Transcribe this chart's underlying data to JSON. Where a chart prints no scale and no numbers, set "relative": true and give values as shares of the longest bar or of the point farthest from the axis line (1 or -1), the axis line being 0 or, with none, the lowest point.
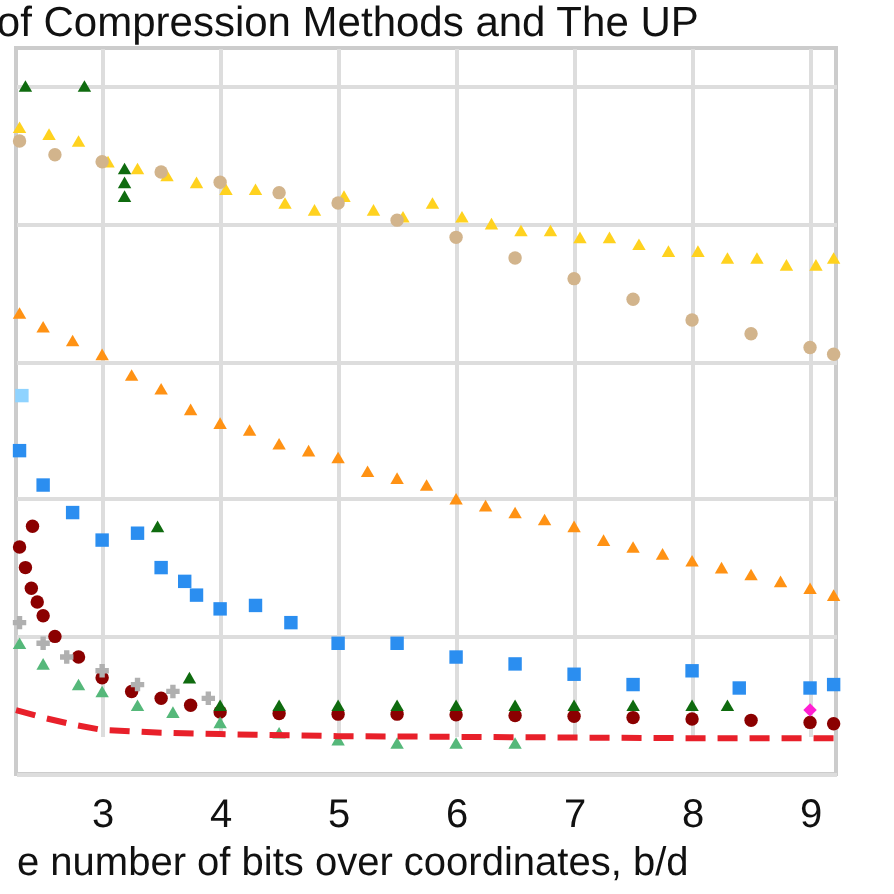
{
  "chart_data": {
    "type": "scatter",
    "title": "of Compression Methods and The UP",
    "xlabel": "e number of bits over coordinates, b/d",
    "relative": true,
    "grid": true,
    "xlim": [
      2.27,
      9.22
    ],
    "xticks": [
      3,
      4,
      5,
      6,
      7,
      8,
      9
    ],
    "series": [
      {
        "marker": "triangle",
        "color": "#ffd21f",
        "x": [
          2.3,
          2.55,
          2.8,
          3.05,
          3.3,
          3.55,
          3.8,
          4.05,
          4.3,
          4.55,
          4.8,
          5.05,
          5.3,
          5.55,
          5.8,
          6.05,
          6.3,
          6.55,
          6.8,
          7.05,
          7.3,
          7.55,
          7.8,
          8.05,
          8.3,
          8.55,
          8.8,
          9.05,
          9.2
        ],
        "values": [
          0.94,
          0.93,
          0.92,
          0.89,
          0.88,
          0.87,
          0.86,
          0.85,
          0.85,
          0.83,
          0.82,
          0.84,
          0.82,
          0.81,
          0.83,
          0.81,
          0.8,
          0.79,
          0.79,
          0.78,
          0.78,
          0.77,
          0.76,
          0.76,
          0.75,
          0.75,
          0.74,
          0.74,
          0.75
        ]
      },
      {
        "marker": "circle",
        "color": "#d2b48c",
        "x": [
          2.3,
          2.6,
          3,
          3.5,
          4,
          4.5,
          5,
          5.5,
          6,
          6.5,
          7,
          7.5,
          8,
          8.5,
          9,
          9.2
        ],
        "values": [
          0.92,
          0.9,
          0.89,
          0.875,
          0.86,
          0.845,
          0.83,
          0.805,
          0.78,
          0.75,
          0.72,
          0.69,
          0.66,
          0.64,
          0.62,
          0.61
        ]
      },
      {
        "marker": "triangle",
        "color": "#ff9214",
        "x": [
          2.3,
          2.5,
          2.75,
          3,
          3.25,
          3.5,
          3.75,
          4,
          4.25,
          4.5,
          4.75,
          5,
          5.25,
          5.5,
          5.75,
          6,
          6.25,
          6.5,
          6.75,
          7,
          7.25,
          7.5,
          7.75,
          8,
          8.25,
          8.5,
          8.75,
          9,
          9.2
        ],
        "values": [
          0.67,
          0.65,
          0.63,
          0.61,
          0.58,
          0.56,
          0.53,
          0.51,
          0.5,
          0.48,
          0.47,
          0.46,
          0.44,
          0.43,
          0.42,
          0.4,
          0.39,
          0.38,
          0.37,
          0.36,
          0.34,
          0.33,
          0.32,
          0.31,
          0.3,
          0.29,
          0.28,
          0.27,
          0.26
        ]
      },
      {
        "marker": "square",
        "color": "#8fd3ff",
        "x": [
          2.32
        ],
        "values": [
          0.55
        ]
      },
      {
        "marker": "square",
        "color": "#2b8ef0",
        "x": [
          2.3,
          2.5,
          2.75,
          3,
          3.3,
          3.5,
          3.7,
          3.8,
          4,
          4.3,
          4.6,
          5,
          5.5,
          6,
          6.5,
          7,
          7.5,
          8,
          8.4,
          9,
          9.2
        ],
        "values": [
          0.47,
          0.42,
          0.38,
          0.34,
          0.35,
          0.3,
          0.28,
          0.26,
          0.24,
          0.245,
          0.22,
          0.19,
          0.19,
          0.17,
          0.16,
          0.145,
          0.13,
          0.15,
          0.125,
          0.125,
          0.13
        ]
      },
      {
        "marker": "circle",
        "color": "#8b0000",
        "x": [
          2.3,
          2.35,
          2.4,
          2.41,
          2.45,
          2.5,
          2.6,
          2.8,
          3,
          3.25,
          3.5,
          3.75,
          4,
          4.5,
          5,
          5.5,
          6,
          6.5,
          7,
          7.5,
          8,
          8.5,
          9,
          9.2
        ],
        "values": [
          0.33,
          0.3,
          0.27,
          0.36,
          0.25,
          0.23,
          0.2,
          0.17,
          0.14,
          0.12,
          0.11,
          0.1,
          0.09,
          0.088,
          0.087,
          0.087,
          0.086,
          0.085,
          0.084,
          0.082,
          0.08,
          0.078,
          0.075,
          0.073
        ]
      },
      {
        "marker": "cross",
        "color": "#b0b0b0",
        "x": [
          2.3,
          2.5,
          2.7,
          3,
          3.3,
          3.6,
          3.9
        ],
        "values": [
          0.22,
          0.19,
          0.17,
          0.15,
          0.13,
          0.12,
          0.11
        ]
      },
      {
        "marker": "triangle",
        "color": "#55b87a",
        "x": [
          2.3,
          2.5,
          2.8,
          3,
          3.3,
          3.6,
          4,
          4.5,
          5,
          5.5,
          6,
          6.5
        ],
        "values": [
          0.19,
          0.16,
          0.13,
          0.12,
          0.1,
          0.09,
          0.075,
          0.06,
          0.05,
          0.045,
          0.045,
          0.045
        ]
      },
      {
        "marker": "triangle",
        "color": "#0f6b0f",
        "x": [
          2.35,
          2.85,
          3.19,
          3.19,
          3.19,
          3.47,
          3.74,
          4,
          4.5,
          5,
          5.5,
          6,
          6.5,
          7,
          7.5,
          8,
          8.3
        ],
        "values": [
          1,
          1,
          0.88,
          0.86,
          0.84,
          0.36,
          0.14,
          0.1,
          0.1,
          0.1,
          0.1,
          0.1,
          0.1,
          0.1,
          0.1,
          0.1,
          0.1
        ]
      },
      {
        "type": "line",
        "line_style": "dashed",
        "color": "#e8202a",
        "x": [
          2.27,
          2.5,
          2.75,
          3,
          3.5,
          4,
          5,
          6,
          7,
          8,
          9.2
        ],
        "values": [
          0.093,
          0.082,
          0.072,
          0.064,
          0.06,
          0.058,
          0.055,
          0.054,
          0.053,
          0.052,
          0.052
        ]
      },
      {
        "marker": "diamond",
        "color": "#ff1fd2",
        "x": [
          9
        ],
        "values": [
          0.093
        ]
      }
    ]
  }
}
